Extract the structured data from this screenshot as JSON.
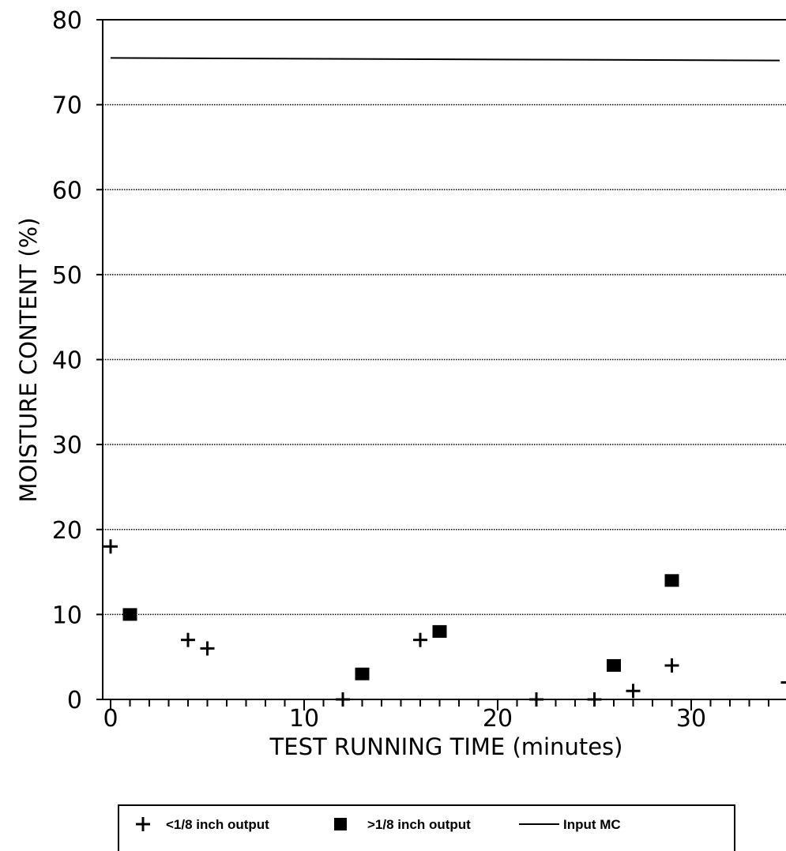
{
  "chart_data": {
    "type": "scatter",
    "title": "",
    "xlabel": "TEST RUNNING TIME (minutes)",
    "ylabel": "MOISTURE CONTENT (%)",
    "xlim": [
      0,
      35
    ],
    "ylim": [
      0,
      80
    ],
    "x_ticks": [
      0,
      10,
      20,
      30
    ],
    "y_ticks": [
      0,
      10,
      20,
      30,
      40,
      50,
      60,
      70,
      80
    ],
    "grid": "horizontal dotted",
    "legend_position": "bottom",
    "series": [
      {
        "name": "<1/8 inch output",
        "marker": "plus",
        "points": [
          {
            "x": 0,
            "y": 18
          },
          {
            "x": 4,
            "y": 7
          },
          {
            "x": 5,
            "y": 6
          },
          {
            "x": 12,
            "y": 0
          },
          {
            "x": 16,
            "y": 7
          },
          {
            "x": 22,
            "y": 0
          },
          {
            "x": 25,
            "y": 0
          },
          {
            "x": 27,
            "y": 1
          },
          {
            "x": 29,
            "y": 4
          },
          {
            "x": 35,
            "y": 2
          }
        ]
      },
      {
        "name": ">1/8 inch output",
        "marker": "square",
        "points": [
          {
            "x": 1,
            "y": 10
          },
          {
            "x": 13,
            "y": 3
          },
          {
            "x": 17,
            "y": 8
          },
          {
            "x": 26,
            "y": 4
          },
          {
            "x": 29,
            "y": 14
          }
        ]
      },
      {
        "name": "Input MC",
        "marker": "line",
        "points": [
          {
            "x": 0,
            "y": 75.5
          },
          {
            "x": 35,
            "y": 75.2
          }
        ]
      }
    ]
  }
}
